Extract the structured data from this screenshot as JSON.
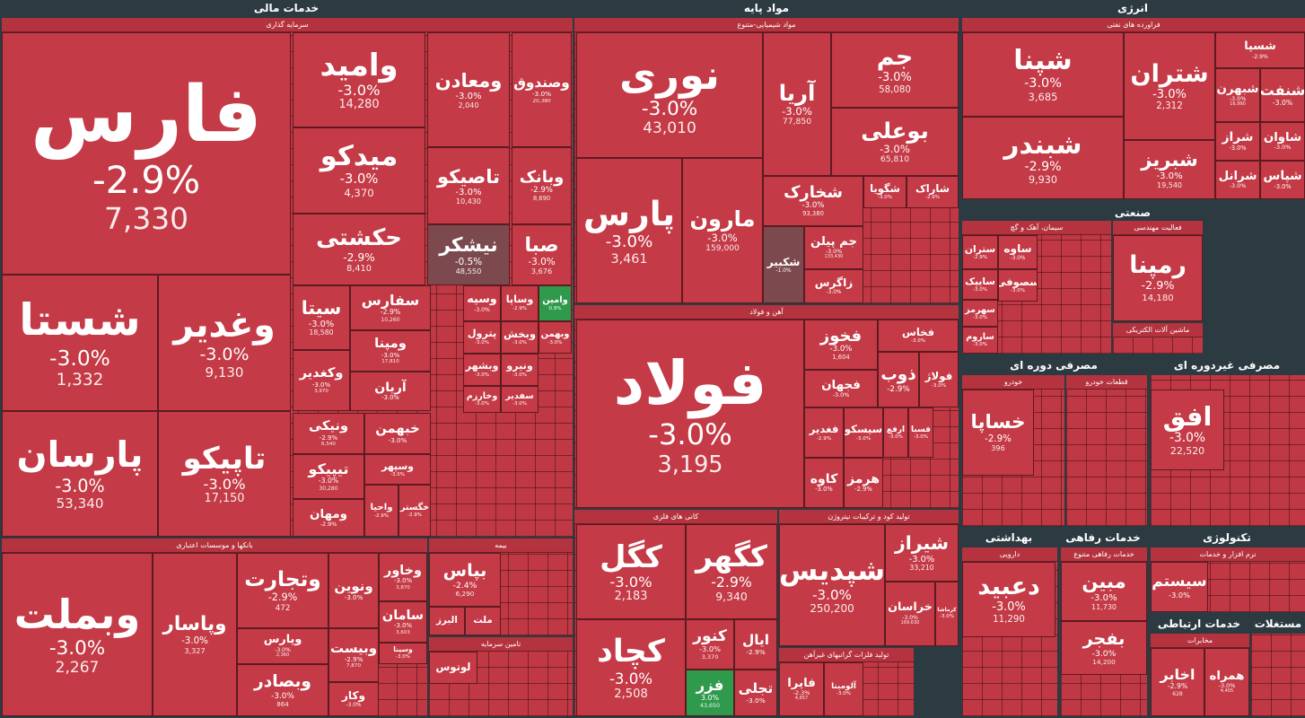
{
  "sectors": [
    {
      "title": "خدمات مالی",
      "groups": [
        {
          "title": "سرمایه گذاری",
          "tiles": [
            {
              "name": "فارس",
              "change": "-2.9%",
              "value": "7,330"
            },
            {
              "name": "وامید",
              "change": "-3.0%",
              "value": "14,280"
            },
            {
              "name": "ومعادن",
              "change": "-3.0%",
              "value": "2,040"
            },
            {
              "name": "وصندوق",
              "change": "-3.0%",
              "value": "20,380"
            },
            {
              "name": "میدکو",
              "change": "-3.0%",
              "value": "4,370"
            },
            {
              "name": "تاصیکو",
              "change": "-3.0%",
              "value": "10,430"
            },
            {
              "name": "وبانک",
              "change": "-2.9%",
              "value": "8,690"
            },
            {
              "name": "حکشتی",
              "change": "-2.9%",
              "value": "8,410"
            },
            {
              "name": "نیشکر",
              "change": "-0.5%",
              "value": "48,550"
            },
            {
              "name": "صبا",
              "change": "-3.0%",
              "value": "3,676"
            },
            {
              "name": "شستا",
              "change": "-3.0%",
              "value": "1,332"
            },
            {
              "name": "وغدیر",
              "change": "-3.0%",
              "value": "9,130"
            },
            {
              "name": "پارسان",
              "change": "-3.0%",
              "value": "53,340"
            },
            {
              "name": "تاپیکو",
              "change": "-3.0%",
              "value": "17,150"
            },
            {
              "name": "سیتا",
              "change": "-3.0%",
              "value": "18,580"
            },
            {
              "name": "سفارس",
              "change": "-2.9%",
              "value": "10,260"
            },
            {
              "name": "ومپنا",
              "change": "-3.0%",
              "value": "17,810"
            },
            {
              "name": "وکغدیر",
              "change": "-3.0%",
              "value": "3,970"
            },
            {
              "name": "آریان",
              "change": "-3.0%"
            },
            {
              "name": "ونیکی",
              "change": "-2.9%",
              "value": "6,540"
            },
            {
              "name": "خبهمن",
              "change": "-3.0%"
            },
            {
              "name": "تیپیکو",
              "change": "-3.0%",
              "value": "30,280"
            },
            {
              "name": "وسپهر",
              "change": "-3.0%"
            },
            {
              "name": "ومهان",
              "change": "-2.9%"
            },
            {
              "name": "واحیا",
              "change": "-2.9%"
            },
            {
              "name": "خگستر",
              "change": "-2.9%"
            },
            {
              "name": "وسپه",
              "change": "-3.0%"
            },
            {
              "name": "وساپا",
              "change": "-2.9%"
            },
            {
              "name": "وامین",
              "change": "0.9%"
            },
            {
              "name": "پترول",
              "change": "-3.0%"
            },
            {
              "name": "وبخش",
              "change": "-3.0%"
            },
            {
              "name": "وبهمن",
              "change": "-3.0%"
            },
            {
              "name": "وبشهر",
              "change": "-3.0%"
            },
            {
              "name": "ونیرو",
              "change": "-3.0%"
            },
            {
              "name": "وخارزم",
              "change": "-3.0%"
            },
            {
              "name": "سفدیر",
              "change": "-3.0%"
            }
          ]
        },
        {
          "title": "بانکها و موسسات اعتباری",
          "tiles": [
            {
              "name": "وبملت",
              "change": "-3.0%",
              "value": "2,267"
            },
            {
              "name": "وپاسار",
              "change": "-3.0%",
              "value": "3,327"
            },
            {
              "name": "وتجارت",
              "change": "-2.9%",
              "value": "472"
            },
            {
              "name": "وپارس",
              "change": "-3.0%",
              "value": "2,360"
            },
            {
              "name": "وبصادر",
              "change": "-3.0%",
              "value": "864"
            },
            {
              "name": "ونوین",
              "change": "-3.0%"
            },
            {
              "name": "وخاور",
              "change": "-3.0%",
              "value": "3,870"
            },
            {
              "name": "سامان",
              "change": "-3.0%",
              "value": "3,603"
            },
            {
              "name": "وبیست",
              "change": "-2.9%",
              "value": "7,870"
            },
            {
              "name": "وسینا",
              "change": "-3.0%"
            },
            {
              "name": "وکار",
              "change": "-3.0%"
            }
          ]
        },
        {
          "title": "بیمه",
          "tiles": [
            {
              "name": "بپاس",
              "change": "-2.4%",
              "value": "6,290"
            },
            {
              "name": "البرز"
            },
            {
              "name": "ملت"
            }
          ]
        },
        {
          "title": "تامین سرمایه",
          "tiles": [
            {
              "name": "لوتوس"
            }
          ]
        }
      ]
    },
    {
      "title": "مواد پایه",
      "groups": [
        {
          "title": "مواد شیمیایی-متنوع",
          "tiles": [
            {
              "name": "نوری",
              "change": "-3.0%",
              "value": "43,010"
            },
            {
              "name": "آریا",
              "change": "-3.0%",
              "value": "77,850"
            },
            {
              "name": "جم",
              "change": "-3.0%",
              "value": "58,080"
            },
            {
              "name": "بوعلی",
              "change": "-3.0%",
              "value": "65,810"
            },
            {
              "name": "پارس",
              "change": "-3.0%",
              "value": "3,461"
            },
            {
              "name": "مارون",
              "change": "-3.0%",
              "value": "159,000"
            },
            {
              "name": "شخارک",
              "change": "-3.0%",
              "value": "93,380"
            },
            {
              "name": "شکبیر",
              "change": "-1.0%"
            },
            {
              "name": "جم پیلن",
              "change": "-3.0%",
              "value": "133,430"
            },
            {
              "name": "زاگرس",
              "change": "-3.0%"
            },
            {
              "name": "شگویا",
              "change": "-3.0%"
            },
            {
              "name": "شاراک",
              "change": "-2.9%"
            }
          ]
        },
        {
          "title": "آهن و فولاد",
          "tiles": [
            {
              "name": "فولاد",
              "change": "-3.0%",
              "value": "3,195"
            },
            {
              "name": "فخوز",
              "change": "-3.0%",
              "value": "1,604"
            },
            {
              "name": "فخاس",
              "change": "-3.0%"
            },
            {
              "name": "فجهان",
              "change": "-3.0%"
            },
            {
              "name": "ذوب",
              "change": "-2.9%"
            },
            {
              "name": "فولاژ",
              "change": "-3.0%"
            },
            {
              "name": "فغدیر",
              "change": "-2.9%"
            },
            {
              "name": "سیسکو",
              "change": "-3.0%"
            },
            {
              "name": "ارفع",
              "change": "-3.0%"
            },
            {
              "name": "فسبا",
              "change": "-3.0%"
            },
            {
              "name": "کاوه",
              "change": "-3.0%"
            },
            {
              "name": "هرمز",
              "change": "-2.9%"
            }
          ]
        },
        {
          "title": "کانی های فلزی",
          "tiles": [
            {
              "name": "کگل",
              "change": "-3.0%",
              "value": "2,183"
            },
            {
              "name": "کگهر",
              "change": "-2.9%",
              "value": "9,340"
            },
            {
              "name": "کچاد",
              "change": "-3.0%",
              "value": "2,508"
            },
            {
              "name": "کنور",
              "change": "-3.0%",
              "value": "3,370"
            },
            {
              "name": "ایال",
              "change": "-2.9%"
            },
            {
              "name": "فزر",
              "change": "3.0%",
              "value": "43,650"
            },
            {
              "name": "تجلی",
              "change": "-3.0%"
            }
          ]
        },
        {
          "title": "تولید کود و ترکیبات نیتروژن",
          "tiles": [
            {
              "name": "شپدیس",
              "change": "-3.0%",
              "value": "250,200"
            },
            {
              "name": "شیراز",
              "change": "-3.0%",
              "value": "33,210"
            },
            {
              "name": "خراسان",
              "change": "-3.0%",
              "value": "169,630"
            },
            {
              "name": "کرماشا",
              "change": "-3.0%"
            }
          ]
        },
        {
          "title": "تولید فلزات گرانبهای غیرآهن",
          "tiles": [
            {
              "name": "فایرا",
              "change": "-2.3%",
              "value": "4,657"
            },
            {
              "name": "آلومینا",
              "change": "-3.0%"
            }
          ]
        }
      ]
    },
    {
      "title": "انرژی",
      "groups": [
        {
          "title": "فراورده های نفتی",
          "tiles": [
            {
              "name": "شپنا",
              "change": "-3.0%",
              "value": "3,685"
            },
            {
              "name": "شتران",
              "change": "-3.0%",
              "value": "2,312"
            },
            {
              "name": "شسپا",
              "change": "-2.9%"
            },
            {
              "name": "شبهرن",
              "change": "-3.0%",
              "value": "16,990"
            },
            {
              "name": "شنفت",
              "change": "-3.0%"
            },
            {
              "name": "شبندر",
              "change": "-2.9%",
              "value": "9,930"
            },
            {
              "name": "شبریز",
              "change": "-3.0%",
              "value": "19,540"
            },
            {
              "name": "شراز",
              "change": "-3.0%"
            },
            {
              "name": "شاوان",
              "change": "-3.0%"
            },
            {
              "name": "شرانل",
              "change": "-3.0%"
            },
            {
              "name": "شپاس",
              "change": "-3.0%"
            }
          ]
        }
      ]
    },
    {
      "title": "صنعتی",
      "groups": [
        {
          "title": "سیمان، آهک و گچ",
          "tiles": [
            {
              "name": "ستران",
              "change": "-2.9%"
            },
            {
              "name": "ساوه",
              "change": "-3.0%"
            },
            {
              "name": "سایپک",
              "change": "-3.0%"
            },
            {
              "name": "سصوفی",
              "change": "-3.0%"
            },
            {
              "name": "سهرمز",
              "change": "-3.0%"
            },
            {
              "name": "ساروم",
              "change": "-3.0%"
            }
          ]
        },
        {
          "title": "فعالیت مهندسی",
          "tiles": [
            {
              "name": "رمپنا",
              "change": "-2.9%",
              "value": "14,180"
            }
          ]
        },
        {
          "title": "ماشین آلات الکتریکی"
        }
      ]
    },
    {
      "title": "مصرفی دوره ای",
      "groups": [
        {
          "title": "خودرو",
          "tiles": [
            {
              "name": "خساپا",
              "change": "-2.9%",
              "value": "396"
            }
          ]
        },
        {
          "title": "قطعات خودرو"
        }
      ]
    },
    {
      "title": "مصرفی غیردوره ای",
      "groups": [
        {
          "tiles": [
            {
              "name": "افق",
              "change": "-3.0%",
              "value": "22,520"
            }
          ]
        }
      ]
    },
    {
      "title": "بهداشتی",
      "groups": [
        {
          "title": "دارویی",
          "tiles": [
            {
              "name": "دعبید",
              "change": "-3.0%",
              "value": "11,290"
            }
          ]
        }
      ]
    },
    {
      "title": "خدمات رفاهی",
      "groups": [
        {
          "title": "خدمات رفاهی متنوع",
          "tiles": [
            {
              "name": "مبین",
              "change": "-3.0%",
              "value": "11,730"
            },
            {
              "name": "بفجر",
              "change": "-3.0%",
              "value": "14,200"
            }
          ]
        }
      ]
    },
    {
      "title": "تکنولوژی",
      "groups": [
        {
          "title": "نرم افزار و خدمات",
          "tiles": [
            {
              "name": "سیستم",
              "change": "-3.0%"
            }
          ]
        }
      ]
    },
    {
      "title": "خدمات ارتباطی",
      "groups": [
        {
          "title": "مخابرات",
          "tiles": [
            {
              "name": "اخابر",
              "change": "-2.9%",
              "value": "628"
            },
            {
              "name": "همراه",
              "change": "-3.0%",
              "value": "4,405"
            }
          ]
        }
      ]
    },
    {
      "title": "مستغلات",
      "groups": [
        {}
      ]
    }
  ]
}
